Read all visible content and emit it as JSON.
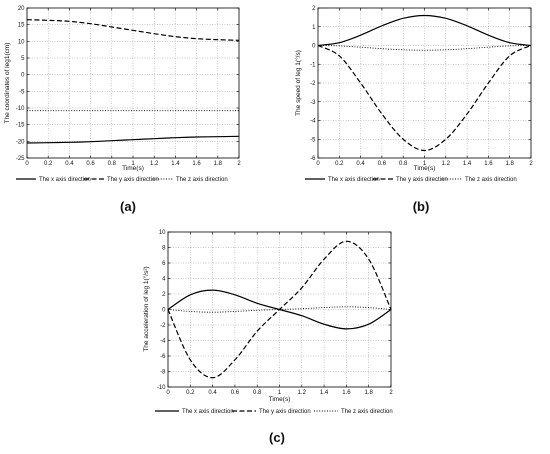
{
  "chart_data": [
    {
      "type": "line",
      "panel_label": "(a)",
      "xlabel": "Time(s)",
      "ylabel": "The coordinates of leg1(cm)",
      "xlim": [
        0,
        2
      ],
      "ylim": [
        -25,
        20
      ],
      "xticks": [
        0,
        0.2,
        0.4,
        0.6,
        0.8,
        1,
        1.2,
        1.4,
        1.6,
        1.8,
        2
      ],
      "xtick_labels": [
        "0",
        "0.2",
        "0.4",
        "0.6",
        "0.8",
        "1",
        "1.2",
        "1.4",
        "1.6",
        "1.8",
        "2"
      ],
      "yticks": [
        -25,
        -20,
        -15,
        -10,
        -5,
        0,
        5,
        10,
        15,
        20
      ],
      "ytick_labels": [
        "-25",
        "-20",
        "-15",
        "-10",
        "-5",
        "0",
        "5",
        "10",
        "15",
        "20"
      ],
      "grid": true,
      "legend_position": "below",
      "x": [
        0,
        0.2,
        0.4,
        0.6,
        0.8,
        1.0,
        1.2,
        1.4,
        1.6,
        1.8,
        2.0
      ],
      "series": [
        {
          "name": "The x axis direction",
          "style": "solid",
          "values": [
            -20.5,
            -20.4,
            -20.3,
            -20.1,
            -19.8,
            -19.5,
            -19.2,
            -18.9,
            -18.7,
            -18.6,
            -18.5
          ]
        },
        {
          "name": "The y axis direction",
          "style": "dashed",
          "values": [
            16.5,
            16.3,
            16.0,
            15.3,
            14.3,
            13.3,
            12.3,
            11.4,
            10.8,
            10.5,
            10.3
          ]
        },
        {
          "name": "The z axis direction",
          "style": "dotted",
          "values": [
            -10.8,
            -10.8,
            -10.8,
            -10.8,
            -10.8,
            -10.8,
            -10.8,
            -10.8,
            -10.8,
            -10.8,
            -10.8
          ]
        }
      ]
    },
    {
      "type": "line",
      "panel_label": "(b)",
      "xlabel": "Time(s)",
      "ylabel": "The speed of leg 1(°/s)",
      "xlim": [
        0,
        2
      ],
      "ylim": [
        -6,
        2
      ],
      "xticks": [
        0,
        0.2,
        0.4,
        0.6,
        0.8,
        1,
        1.2,
        1.4,
        1.6,
        1.8,
        2
      ],
      "xtick_labels": [
        "0",
        "0.2",
        "0.4",
        "0.6",
        "0.8",
        "1",
        "1.2",
        "1.4",
        "1.6",
        "1.8",
        "2"
      ],
      "yticks": [
        -6,
        -5,
        -4,
        -3,
        -2,
        -1,
        0,
        1,
        2
      ],
      "ytick_labels": [
        "-6",
        "-5",
        "-4",
        "-3",
        "-2",
        "-1",
        "0",
        "1",
        "2"
      ],
      "grid": true,
      "legend_position": "below",
      "x": [
        0,
        0.2,
        0.4,
        0.6,
        0.8,
        1.0,
        1.2,
        1.4,
        1.6,
        1.8,
        2.0
      ],
      "series": [
        {
          "name": "The x axis direction",
          "style": "solid",
          "values": [
            0,
            0.15,
            0.55,
            1.05,
            1.45,
            1.6,
            1.45,
            1.05,
            0.55,
            0.15,
            0
          ]
        },
        {
          "name": "The y axis direction",
          "style": "dashed",
          "values": [
            0,
            -0.55,
            -2.0,
            -3.65,
            -5.0,
            -5.6,
            -5.0,
            -3.65,
            -2.0,
            -0.55,
            0
          ]
        },
        {
          "name": "The z axis direction",
          "style": "dotted",
          "values": [
            0,
            -0.02,
            -0.09,
            -0.17,
            -0.23,
            -0.25,
            -0.23,
            -0.17,
            -0.09,
            -0.02,
            0
          ]
        }
      ]
    },
    {
      "type": "line",
      "panel_label": "(c)",
      "xlabel": "Time(s)",
      "ylabel": "The acceleration of leg 1(°/s²)",
      "xlim": [
        0,
        2
      ],
      "ylim": [
        -10,
        10
      ],
      "xticks": [
        0,
        0.2,
        0.4,
        0.6,
        0.8,
        1,
        1.2,
        1.4,
        1.6,
        1.8,
        2
      ],
      "xtick_labels": [
        "0",
        "0.2",
        "0.4",
        "0.6",
        "0.8",
        "1",
        "1.2",
        "1.4",
        "1.6",
        "1.8",
        "2"
      ],
      "yticks": [
        -10,
        -8,
        -6,
        -4,
        -2,
        0,
        2,
        4,
        6,
        8,
        10
      ],
      "ytick_labels": [
        "-10",
        "-8",
        "-6",
        "-4",
        "-2",
        "0",
        "2",
        "4",
        "6",
        "8",
        "10"
      ],
      "grid": true,
      "legend_position": "below",
      "x": [
        0,
        0.2,
        0.4,
        0.6,
        0.8,
        1.0,
        1.2,
        1.4,
        1.6,
        1.8,
        2.0
      ],
      "series": [
        {
          "name": "The x axis direction",
          "style": "solid",
          "values": [
            0,
            1.9,
            2.5,
            1.9,
            0.8,
            0,
            -0.8,
            -1.9,
            -2.5,
            -1.9,
            0
          ]
        },
        {
          "name": "The y axis direction",
          "style": "dashed",
          "values": [
            0,
            -6.5,
            -8.8,
            -6.5,
            -2.8,
            0,
            2.8,
            6.5,
            8.8,
            6.5,
            0
          ]
        },
        {
          "name": "The z axis direction",
          "style": "dotted",
          "values": [
            0,
            -0.25,
            -0.35,
            -0.25,
            -0.1,
            0,
            0.1,
            0.25,
            0.35,
            0.25,
            0
          ]
        }
      ]
    }
  ]
}
